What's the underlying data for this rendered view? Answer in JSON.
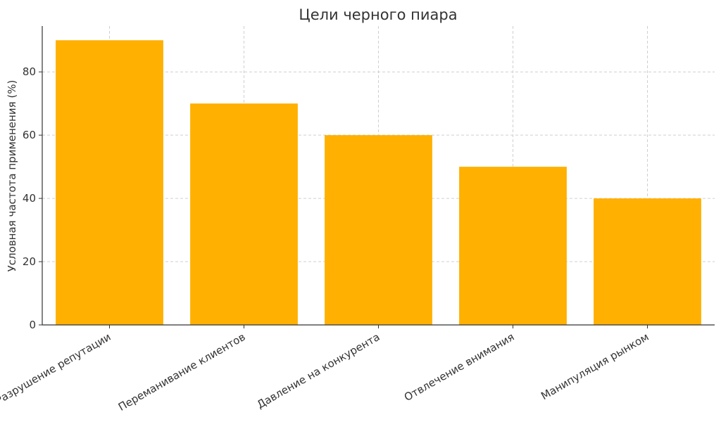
{
  "chart_data": {
    "type": "bar",
    "title": "Цели черного пиара",
    "xlabel": "",
    "ylabel": "Условная частота применения (%)",
    "categories": [
      "Разрушение репутации",
      "Переманивание клиентов",
      "Давление на конкурента",
      "Отвлечение внимания",
      "Манипуляция рынком"
    ],
    "values": [
      90,
      70,
      60,
      50,
      40
    ],
    "ylim": [
      0,
      94.5
    ],
    "yticks": [
      0,
      20,
      40,
      60,
      80
    ],
    "grid": true,
    "bar_color": "#FFB000"
  }
}
